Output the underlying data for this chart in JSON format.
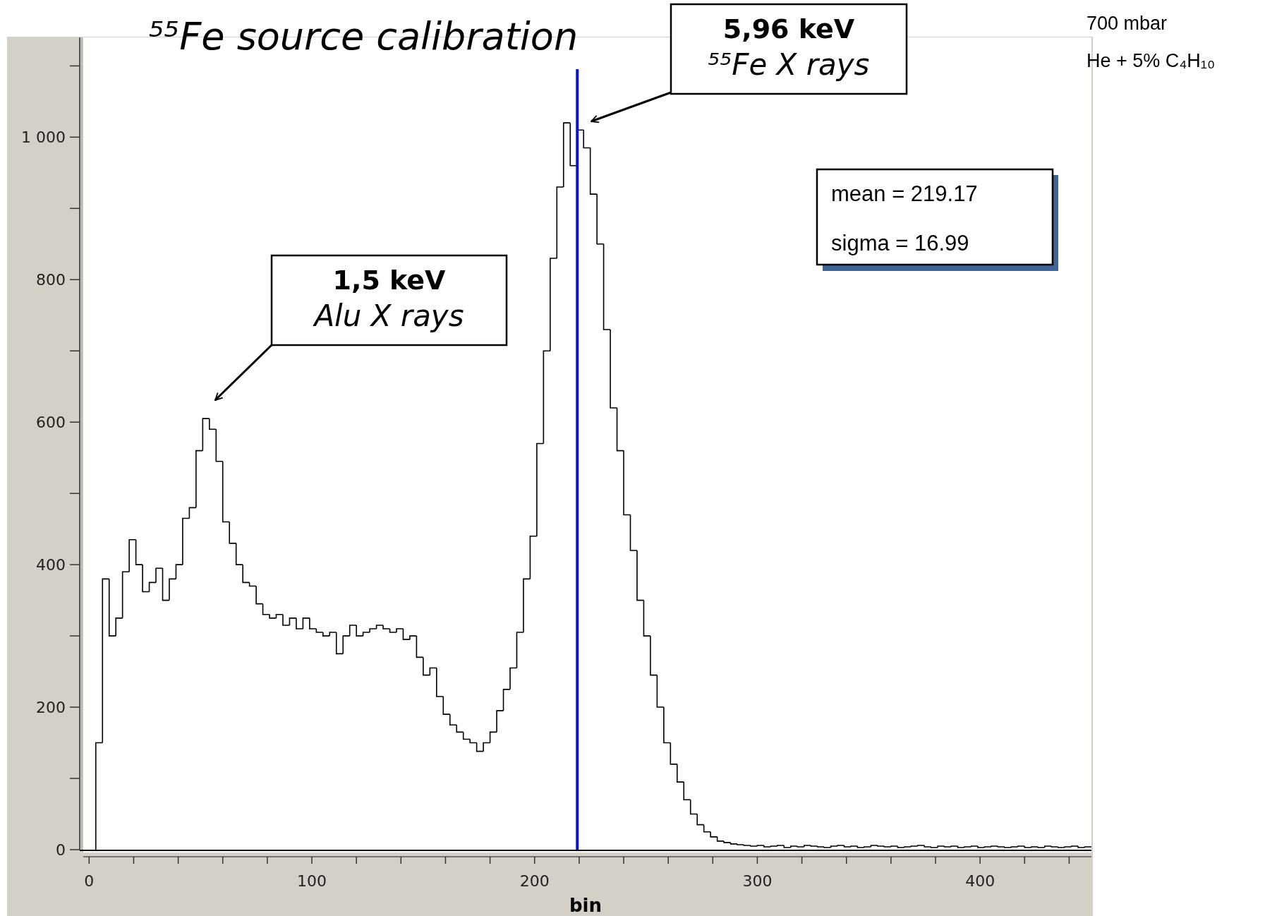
{
  "chart_data": {
    "type": "histogram",
    "title": "⁵⁵Fe source calibration",
    "xlabel": "bin",
    "bins": [
      3,
      6,
      9,
      12,
      15,
      18,
      21,
      24,
      27,
      30,
      33,
      36,
      39,
      42,
      45,
      48,
      51,
      54,
      57,
      60,
      63,
      66,
      69,
      72,
      75,
      78,
      81,
      84,
      87,
      90,
      93,
      96,
      99,
      102,
      105,
      108,
      111,
      114,
      117,
      120,
      123,
      126,
      129,
      132,
      135,
      138,
      141,
      144,
      147,
      150,
      153,
      156,
      159,
      162,
      165,
      168,
      171,
      174,
      177,
      180,
      183,
      186,
      189,
      192,
      195,
      198,
      201,
      204,
      207,
      210,
      213,
      216,
      219,
      222,
      225,
      228,
      231,
      234,
      237,
      240,
      243,
      246,
      249,
      252,
      255,
      258,
      261,
      264,
      267,
      270,
      273,
      276,
      279,
      282,
      285,
      288,
      291,
      294,
      297,
      300,
      303,
      306,
      309,
      312,
      315,
      318,
      321,
      324,
      327,
      330,
      333,
      336,
      339,
      342,
      345,
      348,
      351,
      354,
      357,
      360,
      363,
      366,
      369,
      372,
      375,
      378,
      381,
      384,
      387,
      390,
      393,
      396,
      399,
      402,
      405,
      408,
      411,
      414,
      417,
      420,
      423,
      426,
      429,
      432,
      435,
      438,
      441,
      444,
      447,
      450
    ],
    "values": [
      150,
      380,
      300,
      325,
      390,
      435,
      400,
      362,
      375,
      395,
      350,
      380,
      400,
      465,
      480,
      560,
      605,
      590,
      545,
      460,
      430,
      400,
      375,
      370,
      345,
      330,
      325,
      330,
      315,
      325,
      310,
      325,
      310,
      305,
      300,
      305,
      275,
      300,
      315,
      300,
      305,
      310,
      315,
      310,
      305,
      310,
      295,
      300,
      270,
      245,
      255,
      215,
      190,
      175,
      165,
      155,
      150,
      138,
      150,
      165,
      195,
      225,
      255,
      305,
      380,
      440,
      570,
      700,
      830,
      930,
      1020,
      960,
      1010,
      985,
      920,
      850,
      730,
      620,
      560,
      470,
      420,
      350,
      300,
      245,
      200,
      150,
      120,
      95,
      70,
      50,
      35,
      25,
      18,
      12,
      10,
      8,
      7,
      6,
      5,
      6,
      4,
      5,
      6,
      3,
      5,
      4,
      6,
      5,
      4,
      3,
      5,
      6,
      4,
      5,
      3,
      4,
      6,
      5,
      4,
      5,
      3,
      4,
      5,
      6,
      4,
      3,
      5,
      4,
      5,
      3,
      4,
      5,
      3,
      4,
      5,
      4,
      3,
      4,
      5,
      3,
      4,
      3,
      5,
      4,
      3,
      4,
      5,
      3,
      4
    ],
    "color": "#000000",
    "xlim": [
      -2,
      450
    ],
    "ylim": [
      0,
      1140
    ],
    "xticks": [
      0,
      {
        "value": 20,
        "label": null
      },
      {
        "value": 40,
        "label": null
      },
      {
        "value": 60,
        "label": null
      },
      {
        "value": 80,
        "label": null
      },
      100,
      {
        "value": 120,
        "label": null
      },
      {
        "value": 140,
        "label": null
      },
      {
        "value": 160,
        "label": null
      },
      {
        "value": 180,
        "label": null
      },
      200,
      {
        "value": 220,
        "label": null
      },
      {
        "value": 240,
        "label": null
      },
      {
        "value": 260,
        "label": null
      },
      {
        "value": 280,
        "label": null
      },
      300,
      {
        "value": 320,
        "label": null
      },
      {
        "value": 340,
        "label": null
      },
      {
        "value": 360,
        "label": null
      },
      {
        "value": 380,
        "label": null
      },
      400,
      {
        "value": 420,
        "label": null
      },
      {
        "value": 440,
        "label": null
      }
    ],
    "yticks": [
      0,
      {
        "value": 100,
        "label": null
      },
      200,
      {
        "value": 300,
        "label": null
      },
      400,
      {
        "value": 500,
        "label": null
      },
      600,
      {
        "value": 700,
        "label": null
      },
      800,
      {
        "value": 900,
        "label": null
      },
      {
        "value": 1000,
        "label": "1 000"
      },
      {
        "value": 1100,
        "label": null
      }
    ],
    "ref_lines": [
      {
        "axis": "x",
        "value": 219.17,
        "color": "#0a14d2"
      }
    ],
    "annotations": [
      "700 mbar",
      "He + 5% C₄H₁₀",
      "mean = 219.17",
      "sigma = 16.99",
      "1,5 keV\nAlu X rays",
      "5,96 keV\n⁵⁵Fe X rays"
    ]
  }
}
